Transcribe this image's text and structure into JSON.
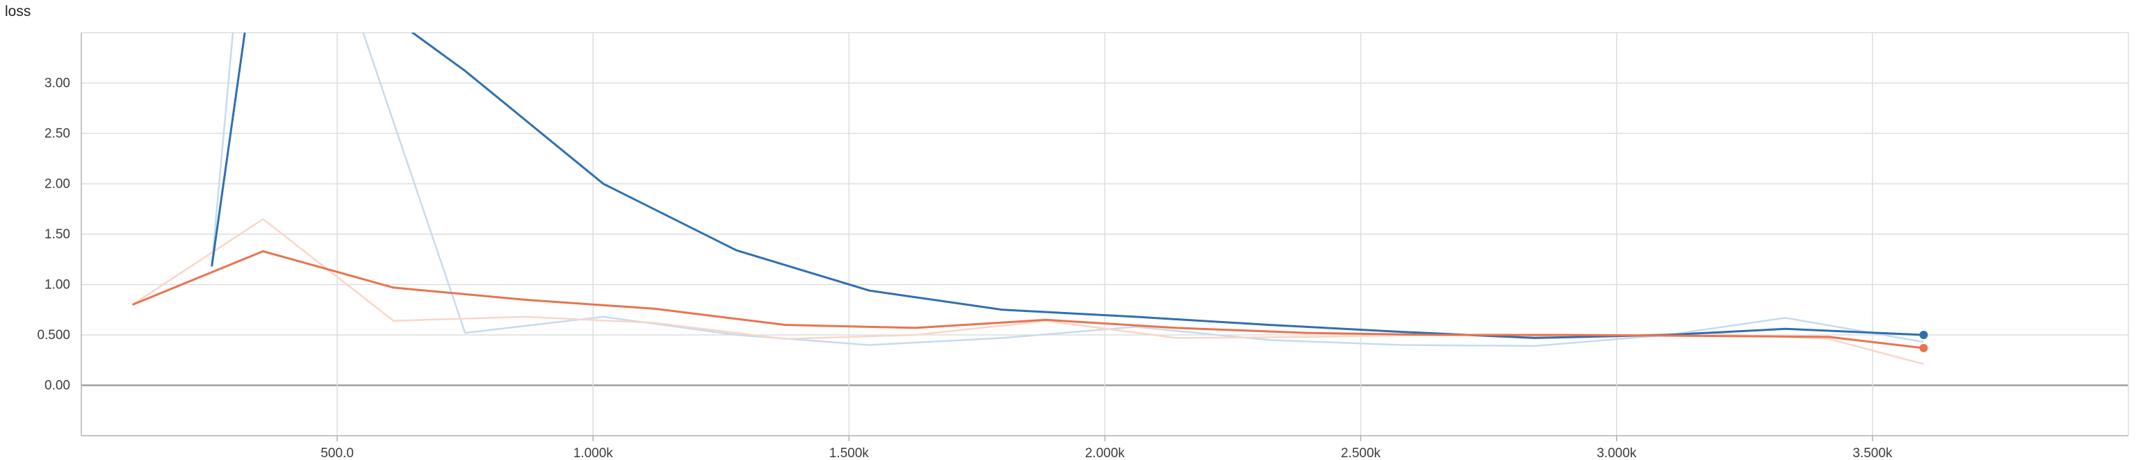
{
  "chart_data": {
    "type": "line",
    "title": "loss",
    "xlim": [
      0,
      4000
    ],
    "ylim": [
      -0.5,
      3.5
    ],
    "x_ticks": [
      500,
      1000,
      1500,
      2000,
      2500,
      3000,
      3500
    ],
    "x_tick_labels": [
      "500.0",
      "1.000k",
      "1.500k",
      "2.000k",
      "2.500k",
      "3.000k",
      "3.500k"
    ],
    "y_ticks": [
      0,
      0.5,
      1,
      1.5,
      2,
      2.5,
      3
    ],
    "y_tick_labels": [
      "0.00",
      "0.500",
      "1.00",
      "1.50",
      "2.00",
      "2.50",
      "3.00"
    ],
    "grid": true,
    "series": [
      {
        "color": "#2f6fb0",
        "raw_color": "#c6dbef",
        "x_raw": [
          255,
          350,
          750,
          1020,
          1280,
          1540,
          1800,
          2060,
          2320,
          2580,
          2840,
          3100,
          3330,
          3600
        ],
        "y_raw": [
          1.2,
          6.5,
          0.52,
          0.68,
          0.5,
          0.4,
          0.47,
          0.58,
          0.45,
          0.4,
          0.39,
          0.5,
          0.67,
          0.43
        ],
        "x": [
          255,
          350,
          750,
          1020,
          1280,
          1540,
          1800,
          2060,
          2320,
          2580,
          2840,
          3100,
          3330,
          3600
        ],
        "y": [
          1.18,
          4.6,
          3.12,
          2.0,
          1.34,
          0.94,
          0.75,
          0.68,
          0.6,
          0.53,
          0.47,
          0.5,
          0.56,
          0.5
        ]
      },
      {
        "color": "#e8744f",
        "raw_color": "#f9d6c8",
        "x_raw": [
          100,
          355,
          610,
          865,
          1120,
          1375,
          1630,
          1885,
          2140,
          2395,
          2650,
          2905,
          3160,
          3415,
          3600
        ],
        "y_raw": [
          0.8,
          1.65,
          0.64,
          0.68,
          0.62,
          0.46,
          0.5,
          0.64,
          0.47,
          0.48,
          0.5,
          0.48,
          0.52,
          0.46,
          0.21
        ],
        "x": [
          100,
          355,
          610,
          865,
          1120,
          1375,
          1630,
          1885,
          2140,
          2395,
          2650,
          2905,
          3160,
          3415,
          3600
        ],
        "y": [
          0.8,
          1.33,
          0.97,
          0.85,
          0.76,
          0.6,
          0.57,
          0.65,
          0.57,
          0.52,
          0.5,
          0.5,
          0.49,
          0.48,
          0.37
        ]
      }
    ]
  }
}
